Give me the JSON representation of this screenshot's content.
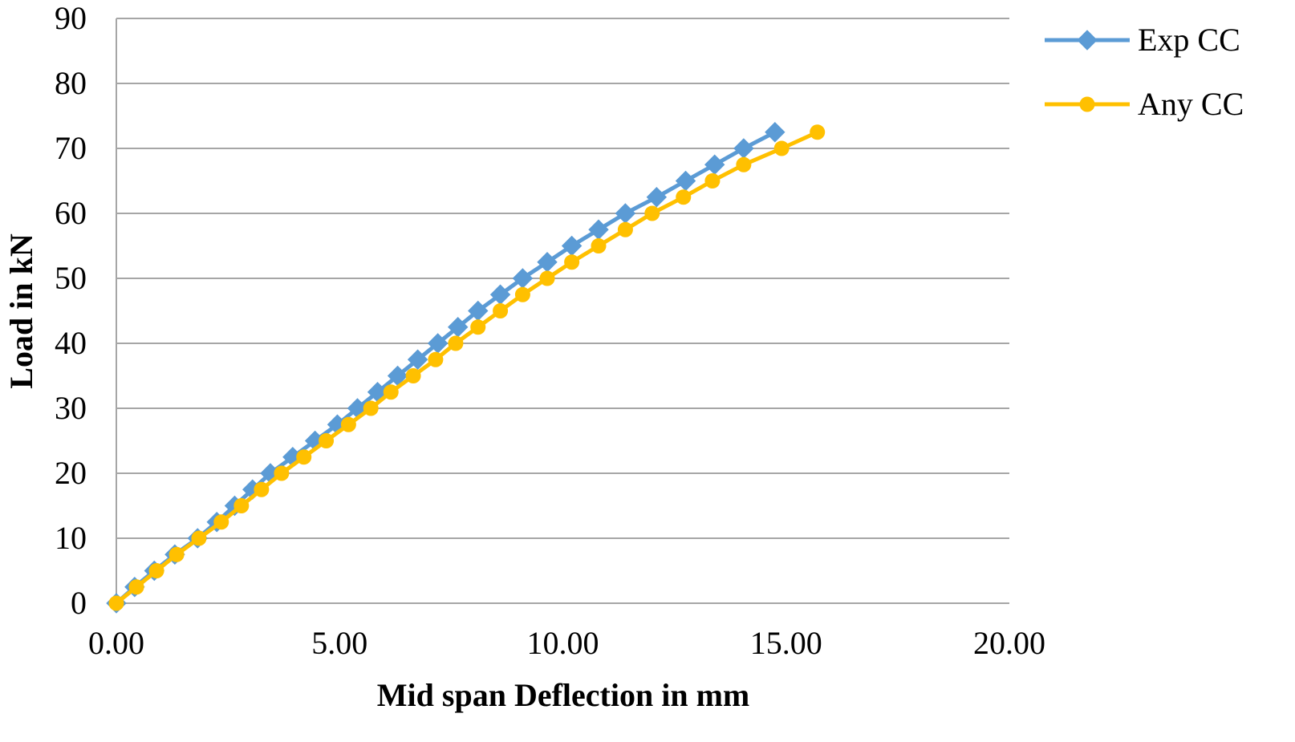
{
  "chart_data": {
    "type": "line",
    "title": "",
    "xlabel": "Mid span Deflection in mm",
    "ylabel": "Load in kN",
    "xlim": [
      0,
      20
    ],
    "ylim": [
      0,
      90
    ],
    "x_ticks": [
      "0.00",
      "5.00",
      "10.00",
      "15.00",
      "20.00"
    ],
    "y_ticks": [
      "0",
      "10",
      "20",
      "30",
      "40",
      "50",
      "60",
      "70",
      "80",
      "90"
    ],
    "grid": "horizontal",
    "legend_position": "top-right",
    "series": [
      {
        "name": "Exp CC",
        "color": "#5b9bd5",
        "marker": "diamond",
        "points": [
          [
            0.0,
            0
          ],
          [
            0.41,
            2.5
          ],
          [
            0.85,
            5
          ],
          [
            1.31,
            7.5
          ],
          [
            1.82,
            10
          ],
          [
            2.25,
            12.5
          ],
          [
            2.65,
            15
          ],
          [
            3.05,
            17.5
          ],
          [
            3.45,
            20
          ],
          [
            3.95,
            22.5
          ],
          [
            4.45,
            25
          ],
          [
            4.95,
            27.5
          ],
          [
            5.4,
            30
          ],
          [
            5.85,
            32.5
          ],
          [
            6.3,
            35
          ],
          [
            6.75,
            37.5
          ],
          [
            7.2,
            40
          ],
          [
            7.65,
            42.5
          ],
          [
            8.1,
            45
          ],
          [
            8.6,
            47.5
          ],
          [
            9.1,
            50
          ],
          [
            9.65,
            52.5
          ],
          [
            10.2,
            55
          ],
          [
            10.8,
            57.5
          ],
          [
            11.4,
            60
          ],
          [
            12.1,
            62.5
          ],
          [
            12.75,
            65
          ],
          [
            13.4,
            67.5
          ],
          [
            14.05,
            70
          ],
          [
            14.75,
            72.5
          ]
        ]
      },
      {
        "name": "Any CC",
        "color": "#ffc000",
        "marker": "circle",
        "points": [
          [
            0.0,
            0
          ],
          [
            0.45,
            2.5
          ],
          [
            0.9,
            5
          ],
          [
            1.35,
            7.5
          ],
          [
            1.85,
            10
          ],
          [
            2.35,
            12.5
          ],
          [
            2.8,
            15
          ],
          [
            3.25,
            17.5
          ],
          [
            3.7,
            20
          ],
          [
            4.2,
            22.5
          ],
          [
            4.7,
            25
          ],
          [
            5.2,
            27.5
          ],
          [
            5.7,
            30
          ],
          [
            6.15,
            32.5
          ],
          [
            6.65,
            35
          ],
          [
            7.15,
            37.5
          ],
          [
            7.6,
            40
          ],
          [
            8.1,
            42.5
          ],
          [
            8.6,
            45
          ],
          [
            9.1,
            47.5
          ],
          [
            9.65,
            50
          ],
          [
            10.2,
            52.5
          ],
          [
            10.8,
            55
          ],
          [
            11.4,
            57.5
          ],
          [
            12.0,
            60
          ],
          [
            12.7,
            62.5
          ],
          [
            13.35,
            65
          ],
          [
            14.05,
            67.5
          ],
          [
            14.9,
            70
          ],
          [
            15.7,
            72.5
          ]
        ]
      }
    ]
  }
}
